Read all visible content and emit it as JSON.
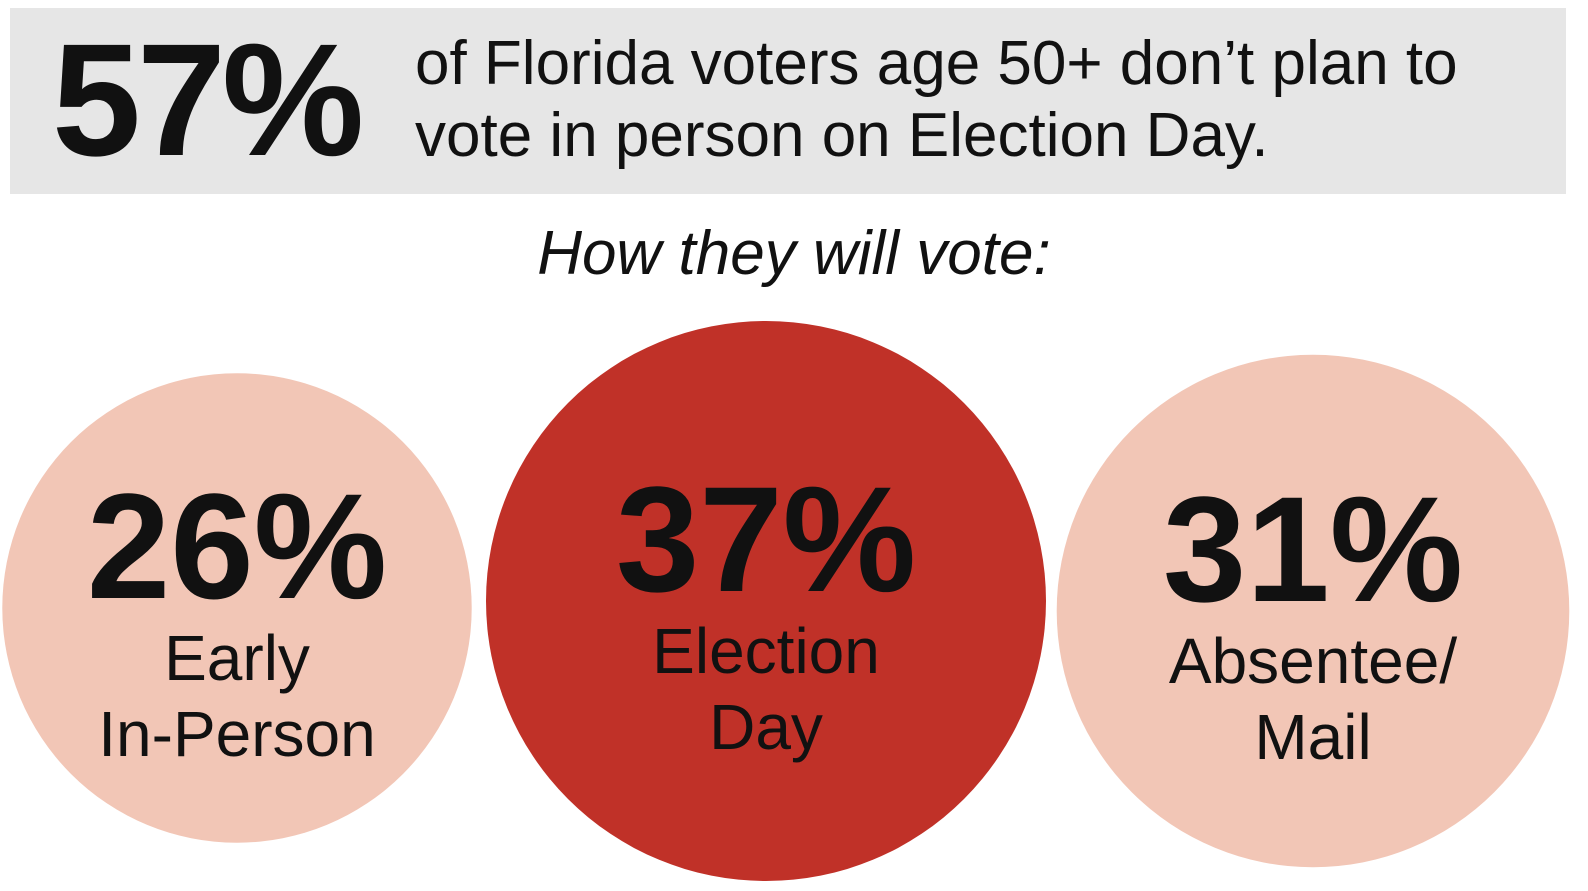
{
  "header": {
    "big_stat": "57%",
    "text": "of Florida voters age 50+ don’t plan to vote in person on Election Day."
  },
  "subtitle": "How they will vote:",
  "colors": {
    "light": "#f2c6b6",
    "dark": "#c03128",
    "banner": "#e6e6e6",
    "text": "#111111"
  },
  "chart_data": {
    "type": "bubble",
    "title": "How they will vote:",
    "series": [
      {
        "label": "Early In-Person",
        "lines": [
          "Early",
          "In-Person"
        ],
        "value": 26,
        "display": "26%",
        "highlight": false
      },
      {
        "label": "Election Day",
        "lines": [
          "Election",
          "Day"
        ],
        "value": 37,
        "display": "37%",
        "highlight": true
      },
      {
        "label": "Absentee/Mail",
        "lines": [
          "Absentee/",
          "Mail"
        ],
        "value": 31,
        "display": "31%",
        "highlight": false
      }
    ]
  }
}
